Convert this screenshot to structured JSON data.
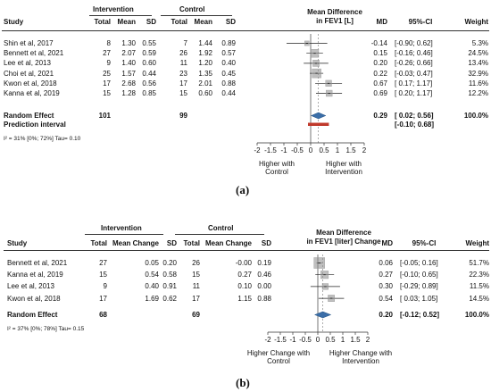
{
  "chart_data": [
    {
      "type": "forest",
      "caption": "(a)",
      "columns": {
        "study": "Study",
        "group1": "Intervention",
        "group2": "Control",
        "total": "Total",
        "mean": "Mean",
        "sd": "SD",
        "plot_title_1": "Mean Difference",
        "plot_title_2": "in FEV1 [L]",
        "md": "MD",
        "ci": "95%-CI",
        "weight": "Weight"
      },
      "studies": [
        {
          "name": "Shin et al, 2017",
          "t1": "8",
          "m1": "1.30",
          "s1": "0.55",
          "t2": "7",
          "m2": "1.44",
          "s2": "0.89",
          "md": "-0.14",
          "ci": "[-0.90; 0.62]",
          "w": "5.3%",
          "md_v": -0.14,
          "lo": -0.9,
          "hi": 0.62,
          "w_v": 5.3
        },
        {
          "name": "Bennett et al, 2021",
          "t1": "27",
          "m1": "2.07",
          "s1": "0.59",
          "t2": "26",
          "m2": "1.92",
          "s2": "0.57",
          "md": "0.15",
          "ci": "[-0.16; 0.46]",
          "w": "24.5%",
          "md_v": 0.15,
          "lo": -0.16,
          "hi": 0.46,
          "w_v": 24.5
        },
        {
          "name": "Lee et al, 2013",
          "t1": "9",
          "m1": "1.40",
          "s1": "0.60",
          "t2": "11",
          "m2": "1.20",
          "s2": "0.40",
          "md": "0.20",
          "ci": "[-0.26; 0.66]",
          "w": "13.4%",
          "md_v": 0.2,
          "lo": -0.26,
          "hi": 0.66,
          "w_v": 13.4
        },
        {
          "name": "Choi et al, 2021",
          "t1": "25",
          "m1": "1.57",
          "s1": "0.44",
          "t2": "23",
          "m2": "1.35",
          "s2": "0.45",
          "md": "0.22",
          "ci": "[-0.03; 0.47]",
          "w": "32.9%",
          "md_v": 0.22,
          "lo": -0.03,
          "hi": 0.47,
          "w_v": 32.9
        },
        {
          "name": "Kwon et al, 2018",
          "t1": "17",
          "m1": "2.68",
          "s1": "0.56",
          "t2": "17",
          "m2": "2.01",
          "s2": "0.88",
          "md": "0.67",
          "ci": "[ 0.17; 1.17]",
          "w": "11.6%",
          "md_v": 0.67,
          "lo": 0.17,
          "hi": 1.17,
          "w_v": 11.6
        },
        {
          "name": "Kanna et al, 2019",
          "t1": "15",
          "m1": "1.28",
          "s1": "0.85",
          "t2": "15",
          "m2": "0.60",
          "s2": "0.44",
          "md": "0.69",
          "ci": "[ 0.20; 1.17]",
          "w": "12.2%",
          "md_v": 0.69,
          "lo": 0.2,
          "hi": 1.17,
          "w_v": 12.2
        }
      ],
      "pooled": {
        "name": "Random Effect",
        "t1": "101",
        "t2": "99",
        "md": "0.29",
        "ci": "[ 0.02; 0.56]",
        "w": "100.0%",
        "md_v": 0.29,
        "lo": 0.02,
        "hi": 0.56
      },
      "prediction": {
        "name": "Prediction interval",
        "ci": "[-0.10; 0.68]",
        "lo": -0.1,
        "hi": 0.68
      },
      "heterogeneity": "I² = 31% [0%; 72%]   Tau= 0.10",
      "x_ticks": [
        -2,
        -1.5,
        -1,
        -0.5,
        0,
        0.5,
        1,
        1.5,
        2
      ],
      "x_tick_labels": [
        "-2",
        "-1.5",
        "-1",
        "-0.5",
        "0",
        "0.5",
        "1",
        "1.5",
        "2"
      ],
      "xlim": [
        -2,
        2
      ],
      "favors_left": [
        "Higher with",
        "Control"
      ],
      "favors_right": [
        "Higher with",
        "Intervention"
      ]
    },
    {
      "type": "forest",
      "caption": "(b)",
      "columns": {
        "study": "Study",
        "group1": "Intervention",
        "group2": "Control",
        "total": "Total",
        "mean": "Mean Change",
        "sd": "SD",
        "plot_title_1": "Mean Difference",
        "plot_title_2": "in FEV1 [liter] Change",
        "md": "MD",
        "ci": "95%-CI",
        "weight": "Weight"
      },
      "studies": [
        {
          "name": "Bennett et al, 2021",
          "t1": "27",
          "m1": "0.05",
          "s1": "0.20",
          "t2": "26",
          "m2": "-0.00",
          "s2": "0.19",
          "md": "0.06",
          "ci": "[-0.05; 0.16]",
          "w": "51.7%",
          "md_v": 0.06,
          "lo": -0.05,
          "hi": 0.16,
          "w_v": 51.7
        },
        {
          "name": "Kanna et al, 2019",
          "t1": "15",
          "m1": "0.54",
          "s1": "0.58",
          "t2": "15",
          "m2": "0.27",
          "s2": "0.46",
          "md": "0.27",
          "ci": "[-0.10; 0.65]",
          "w": "22.3%",
          "md_v": 0.27,
          "lo": -0.1,
          "hi": 0.65,
          "w_v": 22.3
        },
        {
          "name": "Lee et al, 2013",
          "t1": "9",
          "m1": "0.40",
          "s1": "0.91",
          "t2": "11",
          "m2": "0.10",
          "s2": "0.00",
          "md": "0.30",
          "ci": "[-0.29; 0.89]",
          "w": "11.5%",
          "md_v": 0.3,
          "lo": -0.29,
          "hi": 0.89,
          "w_v": 11.5
        },
        {
          "name": "Kwon et al, 2018",
          "t1": "17",
          "m1": "1.69",
          "s1": "0.62",
          "t2": "17",
          "m2": "1.15",
          "s2": "0.88",
          "md": "0.54",
          "ci": "[ 0.03; 1.05]",
          "w": "14.5%",
          "md_v": 0.54,
          "lo": 0.03,
          "hi": 1.05,
          "w_v": 14.5
        }
      ],
      "pooled": {
        "name": "Random Effect",
        "t1": "68",
        "t2": "69",
        "md": "0.20",
        "ci": "[-0.12; 0.52]",
        "w": "100.0%",
        "md_v": 0.2,
        "lo": -0.12,
        "hi": 0.52
      },
      "heterogeneity": "I² = 37% [0%; 78%]   Tau= 0.15",
      "x_ticks": [
        -2,
        -1.5,
        -1,
        -0.5,
        0,
        0.5,
        1,
        1.5,
        2
      ],
      "x_tick_labels": [
        "-2",
        "-1.5",
        "-1",
        "-0.5",
        "0",
        "0.5",
        "1",
        "1.5",
        "2"
      ],
      "xlim": [
        -2,
        2
      ],
      "favors_left": [
        "Higher Change with",
        "Control"
      ],
      "favors_right": [
        "Higher Change with",
        "Intervention"
      ]
    }
  ],
  "colors": {
    "pooled_diamond": "#3b6ea8",
    "prediction_bar": "#c0392b",
    "square": "#8a8a8a",
    "ci_line": "#222222"
  }
}
